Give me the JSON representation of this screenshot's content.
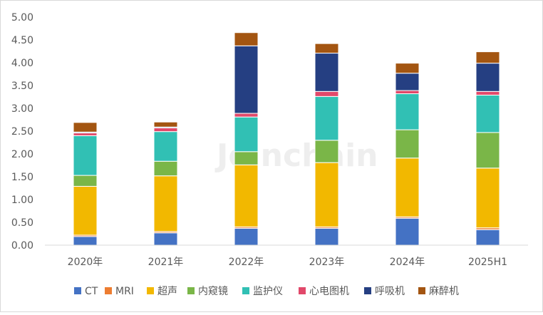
{
  "watermark": "Joinchain",
  "chart_data": {
    "type": "bar",
    "stacked": true,
    "categories": [
      "2020年",
      "2021年",
      "2022年",
      "2023年",
      "2024年",
      "2025H1"
    ],
    "ylim": [
      0,
      5
    ],
    "yticks": [
      "0.00",
      "0.50",
      "1.00",
      "1.50",
      "2.00",
      "2.50",
      "3.00",
      "3.50",
      "4.00",
      "4.50",
      "5.00"
    ],
    "legend_position": "bottom",
    "grid": false,
    "series": [
      {
        "name": "CT",
        "color": "#4472C4",
        "values": [
          0.19,
          0.27,
          0.37,
          0.37,
          0.59,
          0.34
        ]
      },
      {
        "name": "MRI",
        "color": "#ED7D31",
        "values": [
          0.03,
          0.03,
          0.03,
          0.03,
          0.03,
          0.04
        ]
      },
      {
        "name": "超声",
        "color": "#F2B800",
        "values": [
          1.07,
          1.22,
          1.36,
          1.41,
          1.29,
          1.31
        ]
      },
      {
        "name": "内窥镜",
        "color": "#7AB648",
        "values": [
          0.24,
          0.32,
          0.29,
          0.49,
          0.62,
          0.78
        ]
      },
      {
        "name": "监护仪",
        "color": "#31C0B4",
        "values": [
          0.87,
          0.65,
          0.76,
          0.96,
          0.79,
          0.82
        ]
      },
      {
        "name": "心电图机",
        "color": "#E1486A",
        "values": [
          0.06,
          0.08,
          0.08,
          0.11,
          0.07,
          0.08
        ]
      },
      {
        "name": "呼吸机",
        "color": "#253F82",
        "values": [
          0.02,
          0.02,
          1.48,
          0.84,
          0.38,
          0.62
        ]
      },
      {
        "name": "麻醉机",
        "color": "#A35511",
        "values": [
          0.21,
          0.11,
          0.29,
          0.21,
          0.22,
          0.25
        ]
      }
    ]
  }
}
